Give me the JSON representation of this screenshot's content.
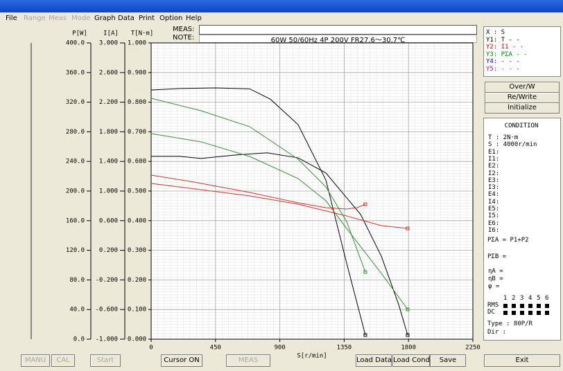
{
  "menu": [
    "File",
    "Range",
    "Meas",
    "Mode",
    "Graph",
    "Data",
    "Print",
    "Option",
    "Help"
  ],
  "header": {
    "meas_label": "MEAS:",
    "note_label": "NOTE:",
    "note": "60W 50/60Hz 4P 200V FR27.6～30.7℃"
  },
  "chart_data": {
    "type": "line",
    "xlabel": "S[r/min]",
    "xlim": [
      0,
      2250
    ],
    "xticks": [
      0,
      450,
      900,
      1350,
      1800,
      2250
    ],
    "ylabel": "T[N·m]",
    "ylim": [
      0,
      1.0
    ],
    "yticks": [
      {
        "value": 0,
        "label": "0.000"
      },
      {
        "value": 0.1,
        "label": "0.100"
      },
      {
        "value": 0.2,
        "label": "0.200"
      },
      {
        "value": 0.3,
        "label": "0.300"
      },
      {
        "value": 0.4,
        "label": "0.400"
      },
      {
        "value": 0.5,
        "label": "0.500"
      },
      {
        "value": 0.6,
        "label": "0.600"
      },
      {
        "value": 0.7,
        "label": "0.700"
      },
      {
        "value": 0.8,
        "label": "0.800"
      },
      {
        "value": 0.9,
        "label": "0.900"
      },
      {
        "value": 1.0,
        "label": "1.000"
      }
    ],
    "y2label": "I[A]",
    "y2lim": [
      -1,
      3
    ],
    "y2ticks": [
      {
        "value": -1,
        "label": "-1.000"
      },
      {
        "value": -0.6,
        "label": "-0.600"
      },
      {
        "value": -0.2,
        "label": "-0.200"
      },
      {
        "value": 0.2,
        "label": "0.200"
      },
      {
        "value": 0.6,
        "label": "0.600"
      },
      {
        "value": 1,
        "label": "1.000"
      },
      {
        "value": 1.4,
        "label": "1.400"
      },
      {
        "value": 1.8,
        "label": "1.800"
      },
      {
        "value": 2.2,
        "label": "2.200"
      },
      {
        "value": 2.6,
        "label": "2.600"
      },
      {
        "value": 3,
        "label": "3.000"
      }
    ],
    "y3label": "P[W]",
    "y3lim": [
      0,
      400
    ],
    "y3ticks": [
      {
        "value": 0,
        "label": "0.0"
      },
      {
        "value": 40,
        "label": "40.0"
      },
      {
        "value": 80,
        "label": "80.0"
      },
      {
        "value": 120,
        "label": "120.0"
      },
      {
        "value": 160,
        "label": "160.0"
      },
      {
        "value": 200,
        "label": "200.0"
      },
      {
        "value": 240,
        "label": "240.0"
      },
      {
        "value": 280,
        "label": "280.0"
      },
      {
        "value": 320,
        "label": "320.0"
      },
      {
        "value": 360,
        "label": "360.0"
      },
      {
        "value": 400,
        "label": "400.0"
      }
    ],
    "grid": true,
    "series": [
      {
        "color": "#000000",
        "axis": "y",
        "x": [
          0,
          200,
          450,
          689,
          834,
          1028,
          1222,
          1367,
          1498
        ],
        "values": [
          0.841,
          0.846,
          0.848,
          0.845,
          0.81,
          0.724,
          0.537,
          0.257,
          0.014
        ]
      },
      {
        "color": "#000000",
        "axis": "y",
        "x": [
          0,
          200,
          349,
          600,
          810,
          1028,
          1222,
          1465,
          1610,
          1731,
          1794
        ],
        "values": [
          0.617,
          0.617,
          0.61,
          0.622,
          0.629,
          0.612,
          0.561,
          0.421,
          0.28,
          0.117,
          0.014
        ]
      },
      {
        "color": "#d03030",
        "axis": "y2",
        "x": [
          0,
          300,
          689,
          1028,
          1222,
          1367,
          1440,
          1498
        ],
        "values": [
          1.215,
          1.121,
          0.981,
          0.841,
          0.776,
          0.757,
          0.776,
          0.822
        ]
      },
      {
        "color": "#d03030",
        "axis": "y2",
        "x": [
          0,
          689,
          1028,
          1367,
          1610,
          1794
        ],
        "values": [
          1.103,
          0.935,
          0.822,
          0.664,
          0.533,
          0.495
        ]
      },
      {
        "color": "#3a8a3a",
        "axis": "y3",
        "x": [
          0,
          349,
          689,
          1028,
          1222,
          1367,
          1498
        ],
        "values": [
          325.2,
          308.4,
          286.9,
          243,
          205.6,
          158.9,
          90.7
        ]
      },
      {
        "color": "#3a8a3a",
        "axis": "y3",
        "x": [
          0,
          349,
          689,
          1028,
          1222,
          1367,
          1610,
          1794
        ],
        "values": [
          277.6,
          266.4,
          246.7,
          216.8,
          186.9,
          149.5,
          88.8,
          40.2
        ]
      }
    ]
  },
  "legend_panel": [
    "X : S",
    "Y1: T - -",
    "Y2: I1 - -",
    "Y3: PΣA - -",
    "Y4: - - -",
    "Y5: - - -"
  ],
  "side_buttons": [
    "Over/W",
    "Re/Write",
    "Initialize"
  ],
  "condition": {
    "title": "CONDITION",
    "lines": [
      "T : 2N·m",
      "S : 4000r/min",
      "E1:",
      "I1:",
      "E2:",
      "I2:",
      "E3:",
      "I3:",
      "E4:",
      "I4:",
      "E5:",
      "I5:",
      "E6:",
      "I6:"
    ],
    "formulas": [
      "PΣA = P1+P2",
      "PΣB ="
    ],
    "eff": [
      "ηA =",
      "ηB =",
      "φ ="
    ],
    "channels": [
      "1",
      "2",
      "3",
      "4",
      "5",
      "6"
    ],
    "rms": "RMS",
    "dc": "DC",
    "type": "Type : 80P/R",
    "dir": "Dir :"
  },
  "bottom_buttons": [
    "MANU",
    "CAL",
    "Start",
    "Cursor ON",
    "MEAS",
    "Load Data",
    "Load Cond",
    "Save",
    "Exit"
  ]
}
